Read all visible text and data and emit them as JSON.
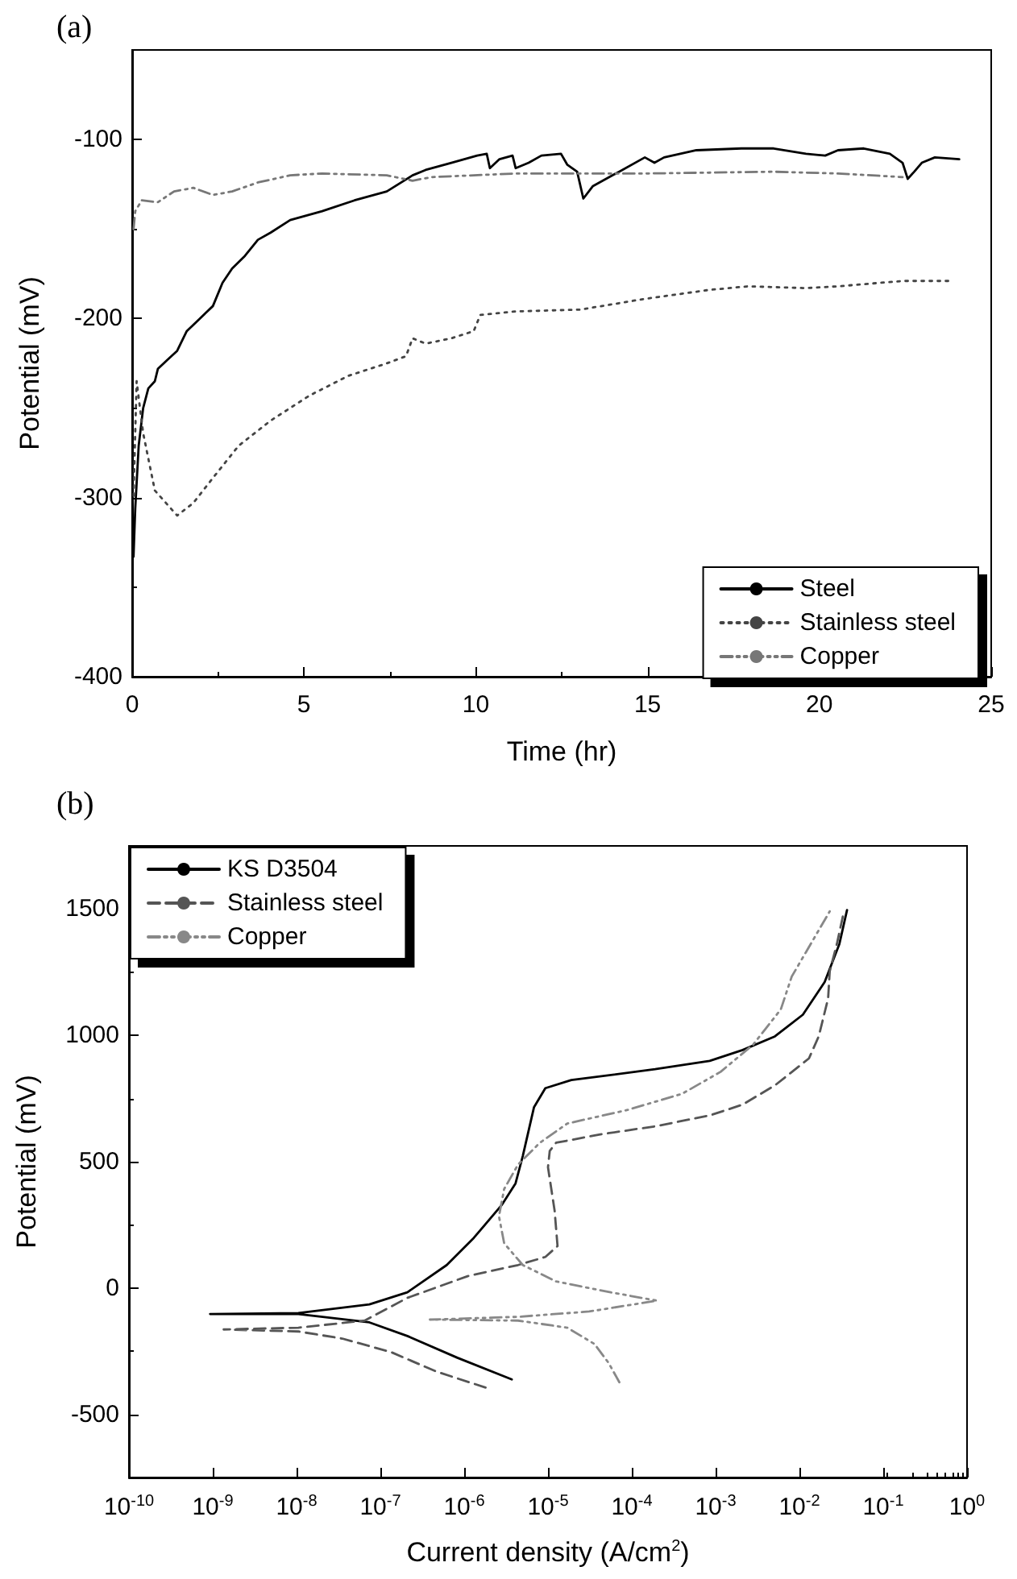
{
  "chart_data": [
    {
      "type": "line",
      "title": "(a)",
      "xlabel": "Time (hr)",
      "ylabel": "Potential (mV)",
      "xlim": [
        0,
        25
      ],
      "xticks": [
        0,
        5,
        10,
        15,
        20,
        25
      ],
      "ylim": [
        -400,
        -50
      ],
      "yticks": [
        -400,
        -300,
        -200,
        -100
      ],
      "grid": false,
      "legend": "bottom right",
      "marker": "none",
      "series": [
        {
          "name": "Steel",
          "color": "#000000",
          "line_style": "solid",
          "x": [
            0.04,
            0.09,
            0.19,
            0.32,
            0.47,
            0.66,
            0.75,
            1.03,
            1.31,
            1.59,
            1.97,
            2.35,
            2.63,
            2.91,
            3.28,
            3.66,
            4.03,
            4.6,
            5.53,
            6.47,
            7.41,
            8.16,
            8.54,
            9.29,
            10.04,
            10.32,
            10.41,
            10.69,
            11.07,
            11.16,
            11.54,
            11.91,
            12.48,
            12.66,
            12.95,
            13.13,
            13.41,
            14.17,
            14.92,
            15.2,
            15.48,
            16.42,
            17.73,
            18.67,
            19.61,
            20.17,
            20.54,
            21.29,
            22.05,
            22.42,
            22.57,
            22.76,
            22.98,
            23.36,
            24.07
          ],
          "values": [
            -333,
            -306,
            -271,
            -250,
            -239,
            -235,
            -228,
            -223,
            -218,
            -207,
            -200,
            -193,
            -180,
            -172,
            -165,
            -156,
            -152,
            -145,
            -140,
            -134,
            -129,
            -120,
            -117,
            -113,
            -109,
            -108,
            -116,
            -111,
            -109,
            -116,
            -113,
            -109,
            -108,
            -114,
            -118,
            -133,
            -126,
            -118,
            -110,
            -113,
            -110,
            -106,
            -105,
            -105,
            -108,
            -109,
            -106,
            -105,
            -108,
            -113,
            -122,
            -118,
            -113,
            -110,
            -111
          ]
        },
        {
          "name": "Stainless steel",
          "color": "#444444",
          "line_style": "dotted",
          "x": [
            0.04,
            0.13,
            0.32,
            0.66,
            1.31,
            1.78,
            2.35,
            3.1,
            4.03,
            5.16,
            6.29,
            7.41,
            7.97,
            8.16,
            8.54,
            9.29,
            9.94,
            10.13,
            11.16,
            13.04,
            14.92,
            16.79,
            17.92,
            19.61,
            20.54,
            22.42,
            23.83
          ],
          "values": [
            -299,
            -235,
            -264,
            -296,
            -310,
            -303,
            -289,
            -271,
            -257,
            -243,
            -232,
            -225,
            -221,
            -211,
            -214,
            -211,
            -207,
            -198,
            -196,
            -195,
            -189,
            -184,
            -182,
            -183,
            -182,
            -179,
            -179
          ]
        },
        {
          "name": "Copper",
          "color": "#777777",
          "line_style": "dashdot",
          "x": [
            0.04,
            0.09,
            0.28,
            0.75,
            1.22,
            1.78,
            2.35,
            2.91,
            3.66,
            4.6,
            5.53,
            7.41,
            8.16,
            8.72,
            11.16,
            14.92,
            18.67,
            20.54,
            22.42
          ],
          "values": [
            -150,
            -140,
            -134,
            -135,
            -129,
            -127,
            -131,
            -129,
            -124,
            -120,
            -119,
            -120,
            -123,
            -121,
            -119,
            -119,
            -118,
            -119,
            -121
          ]
        }
      ]
    },
    {
      "type": "line",
      "title": "(b)",
      "xlabel": "Current density (A/cm$^{2}$)",
      "ylabel": "Potential (mV)",
      "log": "x",
      "xlim": [
        1e-10,
        1
      ],
      "xticks": [
        {
          "value": 1e-10,
          "label": "10$^{-10}$"
        },
        {
          "value": 1e-09,
          "label": "10$^{-9}$"
        },
        {
          "value": 1e-08,
          "label": "10$^{-8}$"
        },
        {
          "value": 1e-07,
          "label": "10$^{-7}$"
        },
        {
          "value": 1e-06,
          "label": "10$^{-6}$"
        },
        {
          "value": 1e-05,
          "label": "10$^{-5}$"
        },
        {
          "value": 0.0001,
          "label": "10$^{-4}$"
        },
        {
          "value": 0.001,
          "label": "10$^{-3}$"
        },
        {
          "value": 0.01,
          "label": "10$^{-2}$"
        },
        {
          "value": 0.1,
          "label": "10$^{-1}$"
        },
        {
          "value": 1,
          "label": "10$^{0}$"
        }
      ],
      "ylim": [
        -750,
        1750
      ],
      "yticks": [
        -500,
        0,
        500,
        1000,
        1500
      ],
      "grid": false,
      "legend": "top left",
      "marker": "none",
      "series": [
        {
          "name": "KS D3504",
          "color": "#000000",
          "line_style": "solid",
          "x": [
            3.7e-06,
            8.3e-07,
            2.1e-07,
            7.4e-08,
            1.05e-08,
            9.3e-10,
            1.05e-08,
            7.4e-08,
            2.1e-07,
            6.2e-07,
            1.3e-06,
            2.8e-06,
            4.1e-06,
            5e-06,
            6.8e-06,
            9.3e-06,
            1.9e-05,
            0.00019,
            0.00085,
            0.0021,
            0.0051,
            0.011,
            0.02,
            0.03,
            0.037
          ],
          "values": [
            -362,
            -276,
            -190,
            -136,
            -103,
            -103,
            -99,
            -65,
            -17,
            91,
            198,
            328,
            414,
            522,
            715,
            791,
            823,
            866,
            899,
            942,
            996,
            1082,
            1211,
            1362,
            1496
          ]
        },
        {
          "name": "Stainless steel",
          "color": "#555555",
          "line_style": "dashed",
          "x": [
            1.8e-06,
            4.6e-07,
            1.35e-07,
            3.5e-08,
            1.05e-08,
            1.35e-09,
            1.05e-08,
            6.5e-08,
            2.1e-07,
            1.1e-06,
            4.4e-06,
            9.3e-06,
            1.3e-05,
            1.2e-05,
            1e-05,
            1.05e-05,
            1.25e-05,
            4.2e-05,
            0.00019,
            0.00085,
            0.0021,
            0.0051,
            0.013,
            0.017,
            0.022,
            0.023,
            0.028,
            0.034
          ],
          "values": [
            -394,
            -330,
            -254,
            -200,
            -172,
            -164,
            -157,
            -129,
            -39,
            47,
            91,
            123,
            166,
            306,
            478,
            543,
            575,
            608,
            640,
            683,
            726,
            802,
            909,
            996,
            1146,
            1254,
            1362,
            1491
          ]
        },
        {
          "name": "Copper",
          "color": "#888888",
          "line_style": "dashdot",
          "x": [
            7.1e-05,
            5.3e-05,
            3.6e-05,
            1.7e-05,
            4.4e-06,
            3.9e-07,
            4.4e-06,
            3.1e-05,
            0.0002,
            5.6e-05,
            1.25e-05,
            5e-06,
            3e-06,
            2.6e-06,
            3e-06,
            4.4e-06,
            8e-06,
            1.7e-05,
            8.9e-05,
            0.0004,
            0.00115,
            0.0028,
            0.006,
            0.0081,
            0.012,
            0.017,
            0.023
          ],
          "values": [
            -373,
            -297,
            -222,
            -157,
            -129,
            -125,
            -114,
            -93,
            -50,
            -17,
            26,
            91,
            177,
            284,
            392,
            489,
            575,
            651,
            705,
            769,
            856,
            963,
            1103,
            1233,
            1330,
            1416,
            1491
          ]
        }
      ]
    }
  ]
}
